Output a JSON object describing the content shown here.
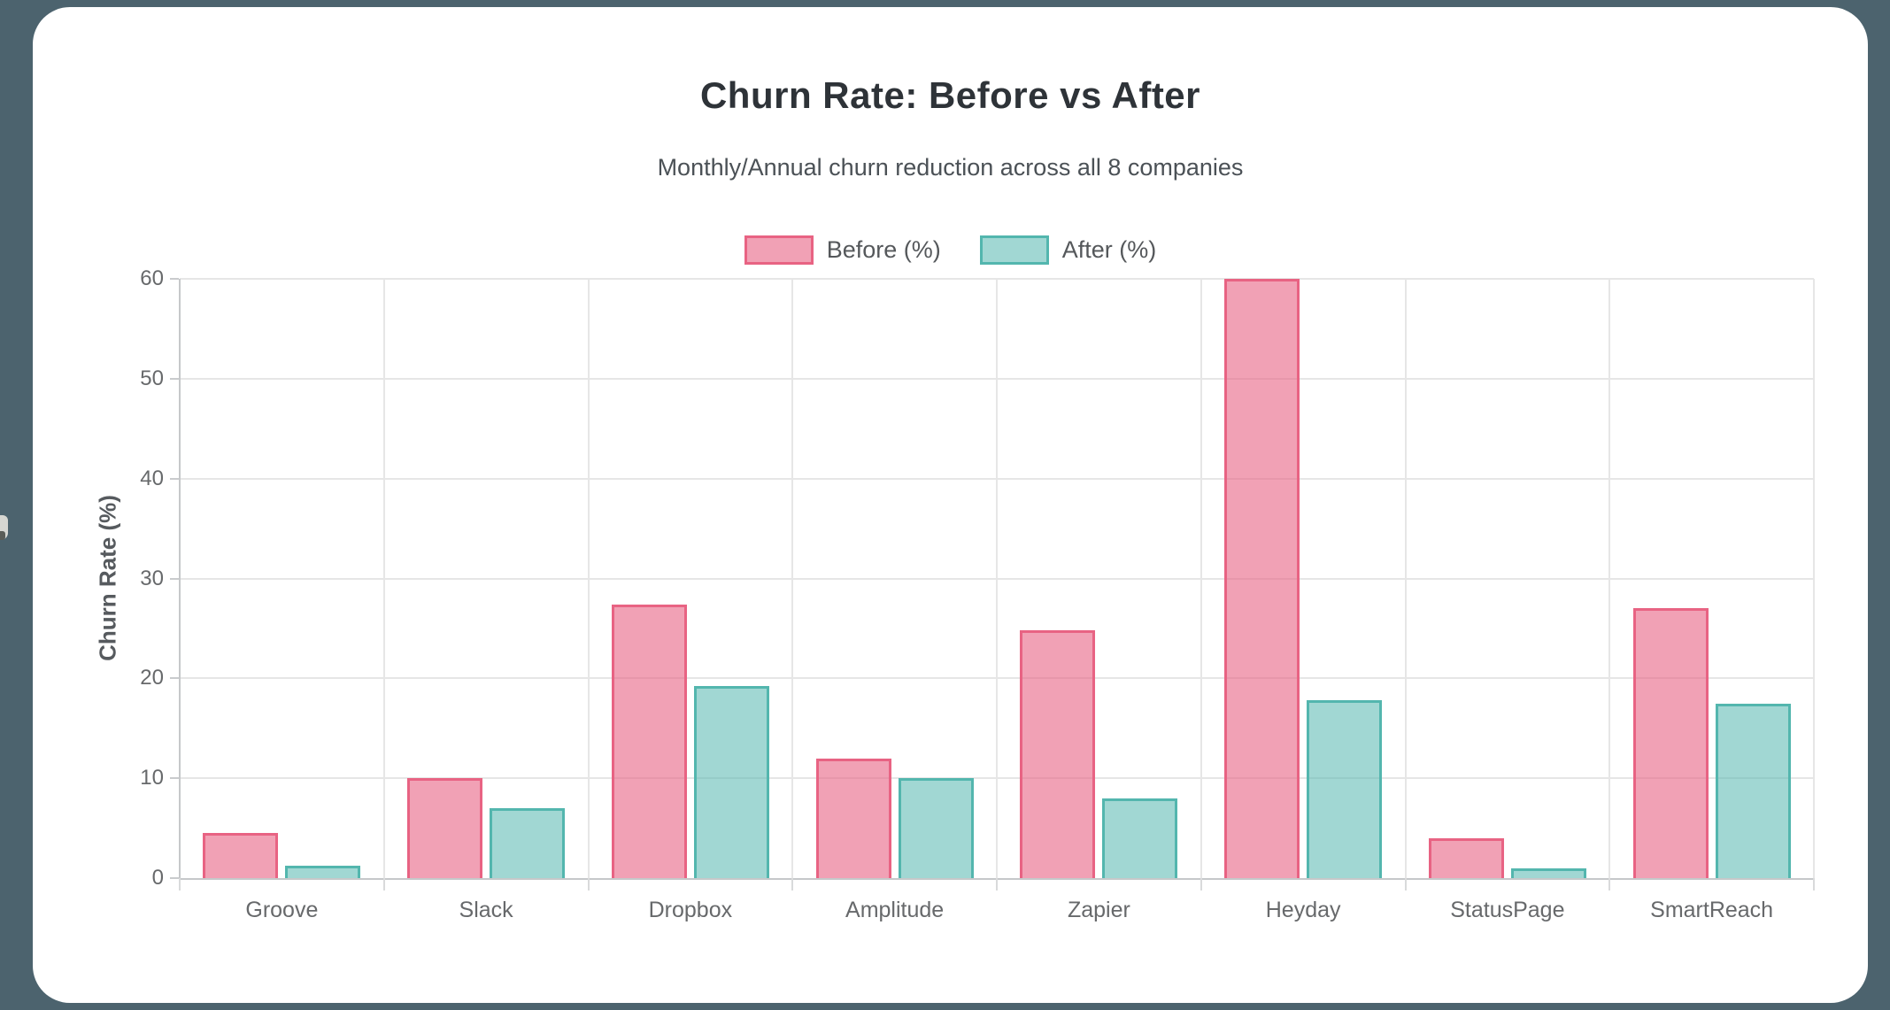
{
  "page": {
    "background_color": "#4c636e",
    "card_color": "#ffffff"
  },
  "chart": {
    "title": "Churn Rate: Before vs After",
    "subtitle": "Monthly/Annual churn reduction across all 8 companies",
    "y_axis_label": "Churn Rate (%)"
  },
  "chart_data": {
    "type": "bar",
    "title": "Churn Rate: Before vs After",
    "subtitle": "Monthly/Annual churn reduction across all 8 companies",
    "categories": [
      "Groove",
      "Slack",
      "Dropbox",
      "Amplitude",
      "Zapier",
      "Heyday",
      "StatusPage",
      "SmartReach"
    ],
    "series": [
      {
        "name": "Before (%)",
        "border_color": "#e86383",
        "fill_color": "rgba(232, 99, 131, 0.6)",
        "values": [
          4.5,
          10,
          27.4,
          12,
          24.8,
          60,
          4,
          27
        ]
      },
      {
        "name": "After (%)",
        "border_color": "#53b6ae",
        "fill_color": "rgba(83, 182, 174, 0.55)",
        "values": [
          1.2,
          7,
          19.2,
          10,
          8,
          17.8,
          1,
          17.5
        ]
      }
    ],
    "xlabel": "",
    "ylabel": "Churn Rate (%)",
    "ylim": [
      0,
      60
    ],
    "yticks": [
      0,
      10,
      20,
      30,
      40,
      50,
      60
    ],
    "grid": true,
    "legend_position": "top"
  }
}
